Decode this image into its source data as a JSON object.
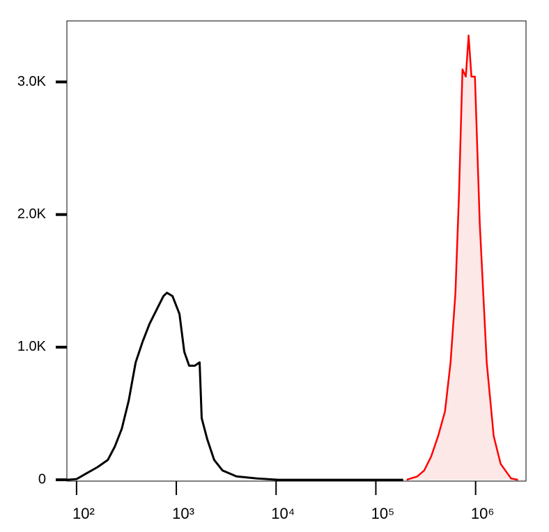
{
  "chart_data": {
    "type": "histogram-overlay",
    "xscale": "log",
    "xlim": [
      80,
      3200000
    ],
    "xticks": [
      {
        "value": 100,
        "label": "10²"
      },
      {
        "value": 1000,
        "label": "10³"
      },
      {
        "value": 10000,
        "label": "10⁴"
      },
      {
        "value": 100000,
        "label": "10⁵"
      },
      {
        "value": 1000000,
        "label": "10⁶"
      }
    ],
    "ylim": [
      -10,
      3460
    ],
    "yticks": [
      0,
      {
        "value": 1000,
        "label": "1.0K"
      },
      {
        "value": 2000,
        "label": "2.0K"
      },
      {
        "value": 3000,
        "label": "3.0K"
      }
    ],
    "series": [
      {
        "color": "#000000",
        "fill": "none",
        "x": [
          80,
          100,
          127,
          162,
          206,
          242,
          284,
          333,
          391,
          459,
          539,
          633,
          743,
          805,
          916,
          1075,
          1202,
          1345,
          1531,
          1711,
          1795,
          2042,
          2396,
          2906,
          4008,
          6486,
          10500,
          188000
        ],
        "values": [
          0,
          5,
          50,
          95,
          150,
          250,
          385,
          595,
          885,
          1040,
          1175,
          1280,
          1385,
          1410,
          1385,
          1250,
          965,
          860,
          860,
          885,
          465,
          305,
          150,
          70,
          25,
          10,
          0,
          0
        ]
      },
      {
        "color": "#ff0000",
        "fill": "#fde8e8",
        "x": [
          204000,
          260000,
          305000,
          358000,
          421000,
          493000,
          561000,
          628000,
          681000,
          738000,
          798000,
          851000,
          908000,
          984000,
          1101000,
          1292000,
          1517000,
          1781000,
          2266000,
          2660000
        ],
        "values": [
          0,
          25,
          70,
          175,
          330,
          515,
          885,
          1410,
          2150,
          3095,
          3040,
          3350,
          3040,
          3040,
          1935,
          885,
          330,
          120,
          10,
          0
        ]
      }
    ]
  }
}
